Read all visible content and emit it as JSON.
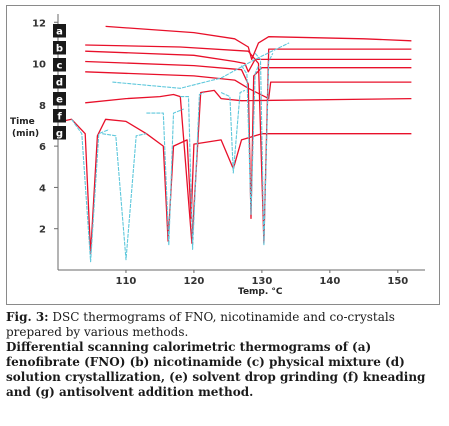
{
  "chart_data": {
    "type": "line",
    "title": "",
    "xlabel": "Temp.",
    "xlabel_unit": "°C",
    "ylabel": "Time (min)",
    "xlim": [
      100,
      154
    ],
    "ylim": [
      0,
      12.4
    ],
    "xticks": [
      "110",
      "120",
      "130",
      "140",
      "150"
    ],
    "yticks": [
      "2",
      "4",
      "6",
      "8",
      "10",
      "12"
    ],
    "grid": false,
    "legend": [
      "a",
      "b",
      "c",
      "d",
      "e",
      "f",
      "g"
    ],
    "legend_position": "top-left",
    "series": [
      {
        "name": "a",
        "color": "#e8102a",
        "points": [
          [
            107,
            11.8
          ],
          [
            120,
            11.5
          ],
          [
            126,
            11.2
          ],
          [
            128,
            10.8
          ],
          [
            128.5,
            10.2
          ],
          [
            129.5,
            11.0
          ],
          [
            131,
            11.3
          ],
          [
            145,
            11.2
          ],
          [
            152,
            11.1
          ]
        ]
      },
      {
        "name": "b",
        "color": "#e8102a",
        "points": [
          [
            104,
            10.9
          ],
          [
            118,
            10.8
          ],
          [
            128,
            10.6
          ],
          [
            129.5,
            10.0
          ],
          [
            130.3,
            1.3
          ],
          [
            131,
            10.7
          ],
          [
            152,
            10.7
          ]
        ]
      },
      {
        "name": "c",
        "color": "#e8102a",
        "points": [
          [
            104,
            10.6
          ],
          [
            120,
            10.4
          ],
          [
            126,
            10.1
          ],
          [
            127.5,
            10.0
          ],
          [
            128,
            9.6
          ],
          [
            129,
            10.2
          ],
          [
            152,
            10.2
          ]
        ]
      },
      {
        "name": "d",
        "color": "#e8102a",
        "points": [
          [
            104,
            10.1
          ],
          [
            120,
            9.9
          ],
          [
            127,
            9.7
          ],
          [
            128,
            9.0
          ],
          [
            128.4,
            2.5
          ],
          [
            128.8,
            9.4
          ],
          [
            130,
            9.8
          ],
          [
            152,
            9.8
          ]
        ]
      },
      {
        "name": "e",
        "color": "#e8102a",
        "points": [
          [
            104,
            9.6
          ],
          [
            120,
            9.4
          ],
          [
            126,
            9.2
          ],
          [
            128,
            8.8
          ],
          [
            131,
            8.3
          ],
          [
            131.3,
            9.1
          ],
          [
            152,
            9.1
          ]
        ]
      },
      {
        "name": "f",
        "color": "#e8102a",
        "points": [
          [
            104,
            8.1
          ],
          [
            110,
            8.3
          ],
          [
            115,
            8.4
          ],
          [
            117,
            8.5
          ],
          [
            118,
            8.4
          ],
          [
            119.7,
            1.3
          ],
          [
            121,
            8.6
          ],
          [
            123,
            8.7
          ],
          [
            124,
            8.3
          ],
          [
            127,
            8.2
          ],
          [
            152,
            8.3
          ]
        ]
      },
      {
        "name": "g",
        "color": "#e8102a",
        "points": [
          [
            100.5,
            7.2
          ],
          [
            102,
            7.3
          ],
          [
            104,
            6.6
          ],
          [
            104.8,
            0.8
          ],
          [
            105.8,
            6.5
          ],
          [
            107,
            7.3
          ],
          [
            110,
            7.2
          ],
          [
            113,
            6.6
          ],
          [
            115.5,
            6.0
          ],
          [
            116.2,
            1.4
          ],
          [
            117,
            6.0
          ],
          [
            119,
            6.3
          ],
          [
            119.6,
            2.5
          ],
          [
            120,
            6.1
          ],
          [
            124,
            6.3
          ],
          [
            125.8,
            4.9
          ],
          [
            127,
            6.3
          ],
          [
            130,
            6.6
          ],
          [
            152,
            6.6
          ]
        ]
      },
      {
        "name": "",
        "color": "#5fc8dc",
        "points": [
          [
            102,
            7.3
          ],
          [
            103.5,
            6.6
          ],
          [
            104.8,
            0.4
          ],
          [
            106,
            6.6
          ],
          [
            107.5,
            6.8
          ]
        ]
      },
      {
        "name": "",
        "color": "#5fc8dc",
        "points": [
          [
            106.5,
            6.6
          ],
          [
            108.5,
            6.5
          ],
          [
            110,
            0.5
          ],
          [
            111.5,
            6.5
          ],
          [
            113,
            6.6
          ]
        ]
      },
      {
        "name": "",
        "color": "#5fc8dc",
        "points": [
          [
            113,
            7.6
          ],
          [
            115.5,
            7.6
          ],
          [
            116.3,
            1.2
          ],
          [
            117,
            7.6
          ],
          [
            118.5,
            7.8
          ]
        ]
      },
      {
        "name": "",
        "color": "#5fc8dc",
        "points": [
          [
            118,
            8.4
          ],
          [
            119.2,
            8.4
          ],
          [
            119.8,
            1.0
          ],
          [
            120.8,
            8.5
          ],
          [
            121.5,
            8.6
          ]
        ]
      },
      {
        "name": "",
        "color": "#5fc8dc",
        "points": [
          [
            124,
            8.6
          ],
          [
            125.3,
            8.4
          ],
          [
            125.8,
            4.7
          ],
          [
            126.8,
            8.6
          ],
          [
            127.5,
            8.7
          ]
        ]
      },
      {
        "name": "",
        "color": "#5fc8dc",
        "points": [
          [
            127,
            9.9
          ],
          [
            127.8,
            9.5
          ],
          [
            128.4,
            2.7
          ],
          [
            129,
            9.5
          ],
          [
            129.5,
            9.9
          ]
        ]
      },
      {
        "name": "",
        "color": "#5fc8dc",
        "points": [
          [
            129,
            10.5
          ],
          [
            129.8,
            10.2
          ],
          [
            130.3,
            1.2
          ],
          [
            131,
            10.1
          ],
          [
            131.6,
            10.5
          ]
        ]
      },
      {
        "name": "",
        "color": "#5fc8dc",
        "points": [
          [
            108,
            9.1
          ],
          [
            118,
            8.8
          ],
          [
            124,
            9.3
          ],
          [
            129,
            10.2
          ],
          [
            134,
            11.0
          ]
        ]
      }
    ]
  },
  "caption": {
    "title_bold": "Fig. 3:",
    "title_text": " DSC thermograms of FNO, nicotinamide and co-crystals prepared by various methods.",
    "body": "Differential scanning calorimetric thermograms of (a) fenofibrate (FNO) (b) nicotinamide (c) physical mixture (d) solution crystallization, (e) solvent drop grinding (f) kneading and (g) antisolvent addition method."
  }
}
